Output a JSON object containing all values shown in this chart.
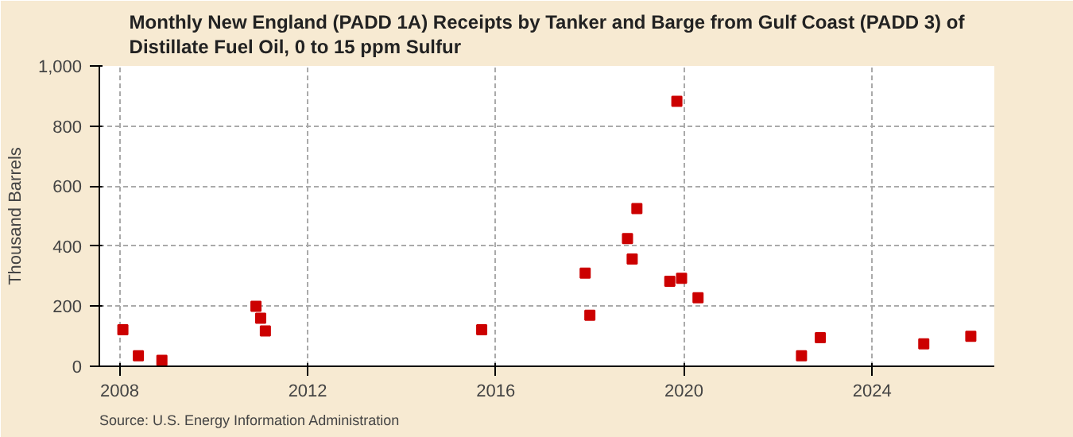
{
  "chart_data": {
    "type": "scatter",
    "title": "Monthly New England (PADD 1A) Receipts by Tanker and Barge from Gulf Coast (PADD 3) of\nDistillate Fuel Oil, 0 to 15 ppm Sulfur",
    "ylabel": "Thousand Barrels",
    "x": [
      2008.07,
      2008.4,
      2008.9,
      2010.9,
      2011.0,
      2011.1,
      2015.7,
      2017.9,
      2018.0,
      2018.8,
      2018.9,
      2019.0,
      2019.7,
      2019.85,
      2019.95,
      2020.3,
      2022.5,
      2022.9,
      2025.1,
      2026.1
    ],
    "series": [
      {
        "color": "#cc0000",
        "values": [
          122,
          35,
          20,
          200,
          160,
          118,
          122,
          310,
          170,
          425,
          357,
          525,
          283,
          882,
          293,
          228,
          35,
          95,
          75,
          100
        ]
      }
    ],
    "xlim": [
      2007.57,
      2026.6
    ],
    "xticks": [
      2008,
      2012,
      2016,
      2020,
      2024
    ],
    "ylim": [
      0,
      1000
    ],
    "yticks": [
      0,
      200,
      400,
      600,
      800,
      {
        "value": 1000,
        "label": "1,000"
      }
    ],
    "grid": true,
    "marker": "square",
    "annotations": [
      "Source: U.S. Energy Information Administration"
    ]
  }
}
